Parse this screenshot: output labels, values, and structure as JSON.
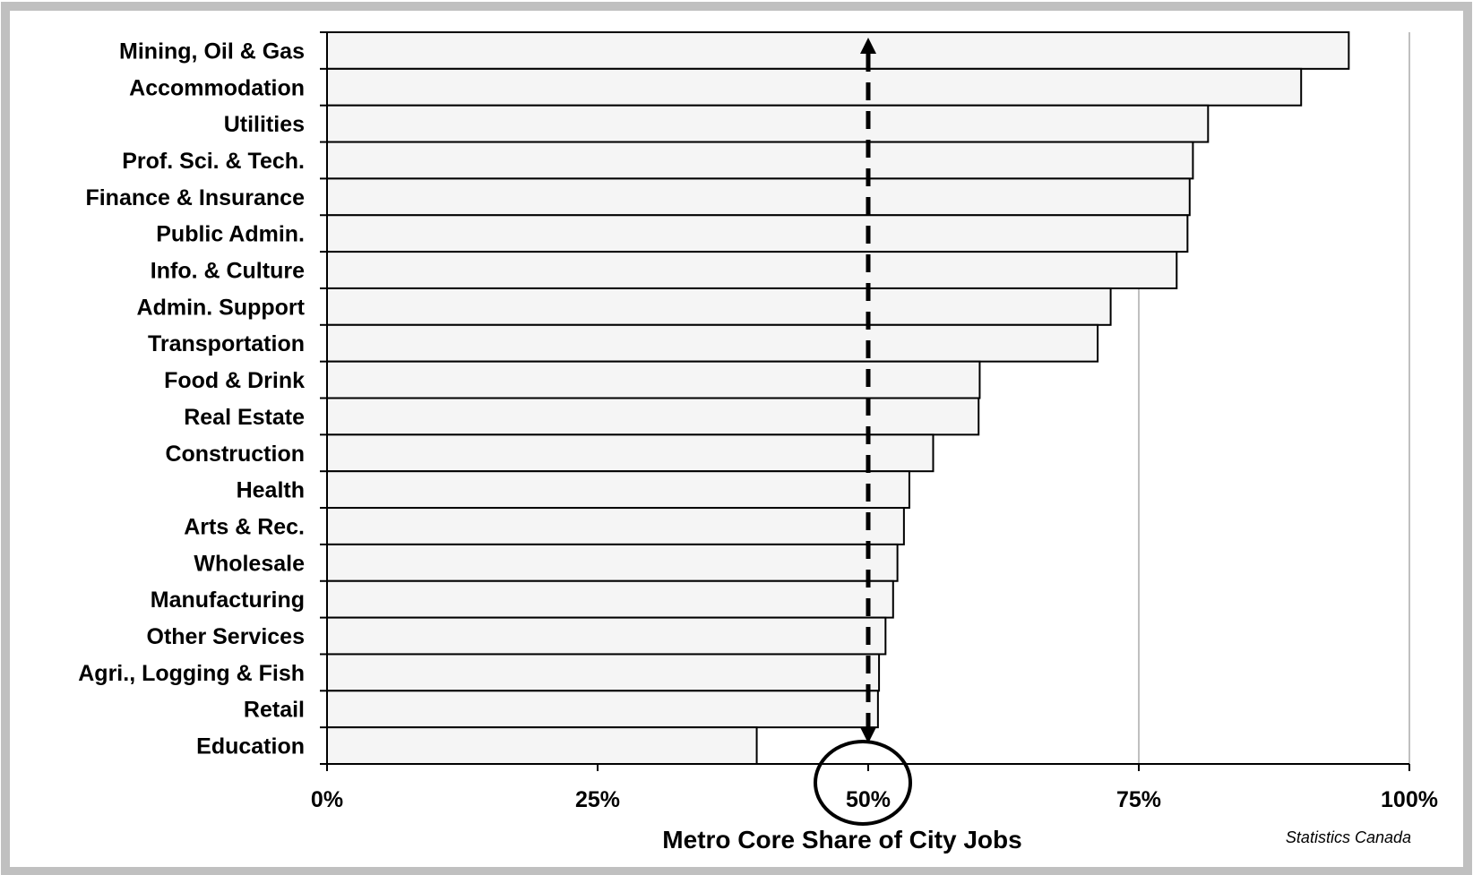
{
  "chart_data": {
    "type": "bar",
    "orientation": "horizontal",
    "categories": [
      "Mining, Oil & Gas",
      "Accommodation",
      "Utilities",
      "Prof. Sci. & Tech.",
      "Finance & Insurance",
      "Public Admin.",
      "Info. & Culture",
      "Admin. Support",
      "Transportation",
      "Food & Drink",
      "Real Estate",
      "Construction",
      "Health",
      "Arts & Rec.",
      "Wholesale",
      "Manufacturing",
      "Other Services",
      "Agri., Logging & Fish",
      "Retail",
      "Education"
    ],
    "values": [
      94.4,
      90.0,
      81.4,
      80.0,
      79.7,
      79.5,
      78.5,
      72.4,
      71.2,
      60.3,
      60.2,
      56.0,
      53.8,
      53.3,
      52.7,
      52.3,
      51.6,
      51.0,
      50.9,
      39.7
    ],
    "xlim": [
      0,
      100
    ],
    "xticks": [
      "0%",
      "25%",
      "50%",
      "75%",
      "100%"
    ],
    "xlabel": "Metro Core Share of City Jobs",
    "reference_line": 50,
    "gridlines": [
      75,
      100
    ],
    "bar_color": "#f5f5f5",
    "source": "Statistics Canada"
  }
}
